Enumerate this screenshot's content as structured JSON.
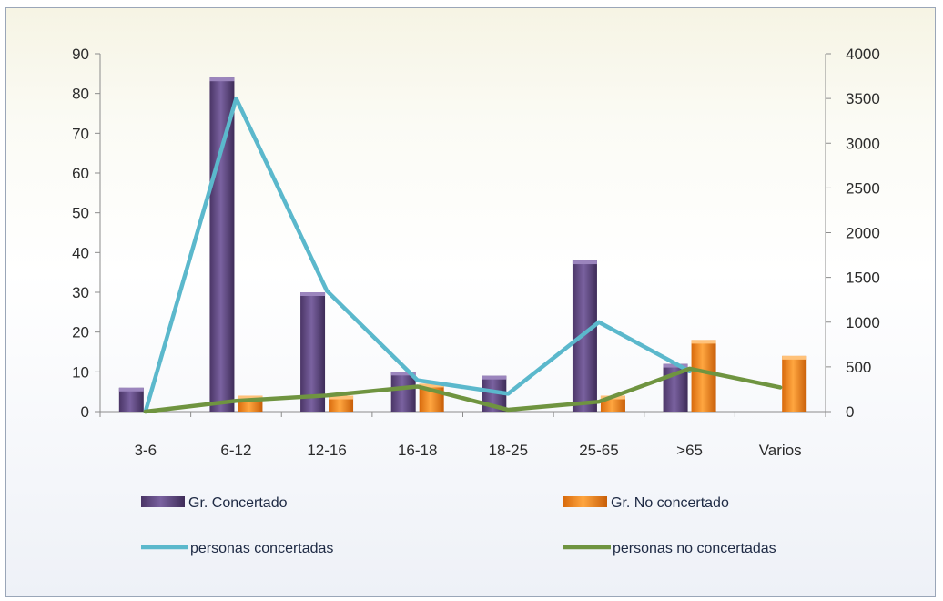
{
  "chart_data": {
    "type": "bar",
    "categories": [
      "3-6",
      "6-12",
      "12-16",
      "16-18",
      "18-25",
      "25-65",
      ">65",
      "Varios"
    ],
    "y_left": {
      "ylim": [
        0,
        90
      ],
      "ticks": [
        0,
        10,
        20,
        30,
        40,
        50,
        60,
        70,
        80,
        90
      ]
    },
    "y_right": {
      "ylim": [
        0,
        4000
      ],
      "ticks": [
        0,
        500,
        1000,
        1500,
        2000,
        2500,
        3000,
        3500,
        4000
      ]
    },
    "series": [
      {
        "name": "Gr. Concertado",
        "kind": "bar",
        "axis": "left",
        "color": "#6a4f8c",
        "values": [
          6,
          84,
          30,
          10,
          9,
          38,
          12,
          null
        ]
      },
      {
        "name": "Gr. No concertado",
        "kind": "bar",
        "axis": "left",
        "color": "#f28a1e",
        "values": [
          null,
          4,
          4,
          7,
          null,
          4,
          18,
          14
        ]
      },
      {
        "name": "personas concertadas",
        "kind": "line",
        "axis": "right",
        "color": "#5bb8cc",
        "values": [
          0,
          3500,
          1350,
          350,
          200,
          1000,
          450,
          null
        ]
      },
      {
        "name": "personas no concertadas",
        "kind": "line",
        "axis": "right",
        "color": "#6f9440",
        "values": [
          0,
          120,
          180,
          280,
          20,
          110,
          480,
          270
        ]
      }
    ],
    "legend_position": "bottom",
    "grid": false
  }
}
